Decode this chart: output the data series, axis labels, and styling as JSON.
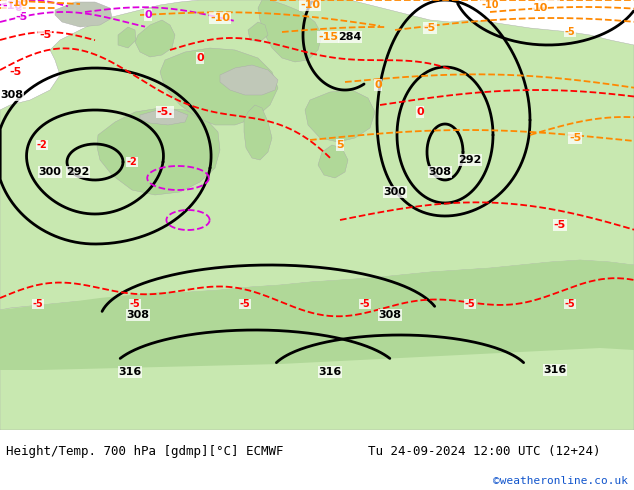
{
  "title_left": "Height/Temp. 700 hPa [gdmp][°C] ECMWF",
  "title_right": "Tu 24-09-2024 12:00 UTC (12+24)",
  "credit": "©weatheronline.co.uk",
  "geo_color": "#000000",
  "temp_red_color": "#ff0000",
  "temp_magenta_color": "#dd00dd",
  "temp_orange_color": "#ff8800",
  "land_green_light": "#c8e8b0",
  "land_green_mid": "#b0d898",
  "land_gray": "#c0c8b8",
  "sea_color": "#c8dce8",
  "bottom_bar_color": "#e8e8e8",
  "label_fs": 8,
  "geo_lw": 2.0,
  "temp_lw": 1.3,
  "title_fs": 9,
  "credit_fs": 8,
  "credit_color": "#1155cc"
}
